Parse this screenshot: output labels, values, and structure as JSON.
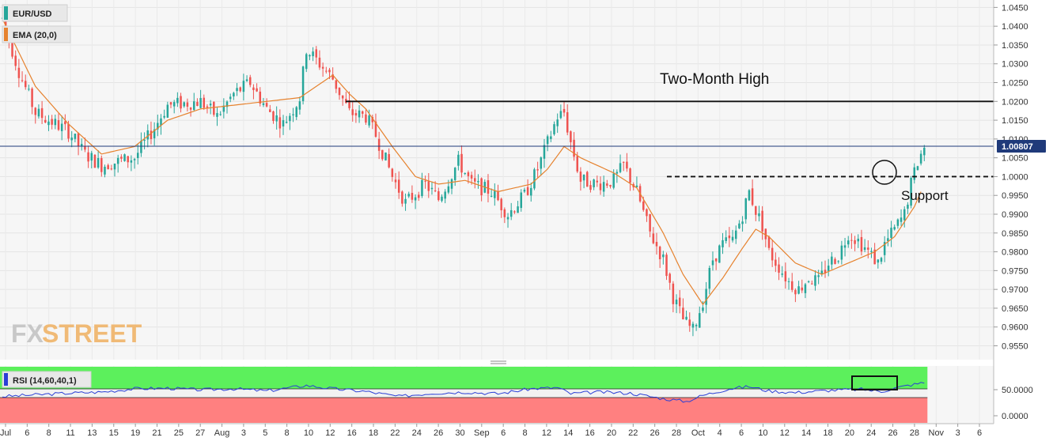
{
  "legend": {
    "symbol": "EUR/USD",
    "ema_label": "EMA (20,0)",
    "rsi_label": "RSI (14,60,40,1)"
  },
  "annotations": {
    "high_label": "Two-Month High",
    "support_label": "Support"
  },
  "watermark": {
    "fx": "FX",
    "street": "STREET"
  },
  "price_badge": "1.00807",
  "colors": {
    "up": "#26a69a",
    "down": "#ef5350",
    "ema": "#e6822e",
    "rsi_line": "#2a3fd6",
    "rsi_overbought": "#5cf05c",
    "rsi_oversold": "#ff8080",
    "price_line": "#1f3a7a"
  },
  "chart_data": {
    "type": "candlestick",
    "instrument": "EUR/USD",
    "price_axis": {
      "range": [
        0.953,
        1.0455
      ],
      "ticks": [
        "1.0450",
        "1.0400",
        "1.0350",
        "1.0300",
        "1.0250",
        "1.0200",
        "1.0150",
        "1.0100",
        "1.0050",
        "1.0000",
        "0.9950",
        "0.9900",
        "0.9850",
        "0.9800",
        "0.9750",
        "0.9700",
        "0.9650",
        "0.9600",
        "0.9550"
      ]
    },
    "time_axis": {
      "labels": [
        "Jul",
        "6",
        "8",
        "11",
        "13",
        "15",
        "19",
        "21",
        "25",
        "27",
        "Aug",
        "3",
        "5",
        "8",
        "10",
        "12",
        "16",
        "18",
        "22",
        "24",
        "26",
        "30",
        "Sep",
        "6",
        "8",
        "12",
        "14",
        "16",
        "20",
        "22",
        "26",
        "28",
        "Oct",
        "4",
        "6",
        "10",
        "12",
        "14",
        "18",
        "20",
        "24",
        "26",
        "28",
        "Nov",
        "3",
        "6"
      ]
    },
    "price_path": [
      [
        0,
        1.042
      ],
      [
        5,
        1.028
      ],
      [
        10,
        1.017
      ],
      [
        20,
        1.012
      ],
      [
        25,
        1.006
      ],
      [
        30,
        1.003
      ],
      [
        40,
        1.005
      ],
      [
        46,
        1.013
      ],
      [
        50,
        1.019
      ],
      [
        60,
        1.02
      ],
      [
        65,
        1.016
      ],
      [
        70,
        1.022
      ],
      [
        75,
        1.025
      ],
      [
        80,
        1.018
      ],
      [
        85,
        1.014
      ],
      [
        88,
        1.018
      ],
      [
        90,
        1.021
      ],
      [
        92,
        1.034
      ],
      [
        96,
        1.03
      ],
      [
        100,
        1.026
      ],
      [
        105,
        1.017
      ],
      [
        110,
        1.016
      ],
      [
        113,
        1.011
      ],
      [
        118,
        1.0
      ],
      [
        122,
        0.993
      ],
      [
        128,
        0.998
      ],
      [
        132,
        0.994
      ],
      [
        138,
        1.004
      ],
      [
        142,
        0.998
      ],
      [
        148,
        0.996
      ],
      [
        153,
        0.99
      ],
      [
        158,
        0.995
      ],
      [
        162,
        1.002
      ],
      [
        165,
        1.009
      ],
      [
        168,
        1.016
      ],
      [
        170,
        1.017
      ],
      [
        172,
        1.009
      ],
      [
        175,
        0.999
      ],
      [
        180,
        0.998
      ],
      [
        185,
        0.999
      ],
      [
        188,
        1.003
      ],
      [
        192,
        0.996
      ],
      [
        196,
        0.985
      ],
      [
        200,
        0.978
      ],
      [
        203,
        0.968
      ],
      [
        206,
        0.962
      ],
      [
        209,
        0.959
      ],
      [
        212,
        0.967
      ],
      [
        215,
        0.978
      ],
      [
        218,
        0.982
      ],
      [
        221,
        0.983
      ],
      [
        224,
        0.99
      ],
      [
        226,
        0.996
      ],
      [
        228,
        0.991
      ],
      [
        230,
        0.987
      ],
      [
        232,
        0.98
      ],
      [
        235,
        0.976
      ],
      [
        238,
        0.972
      ],
      [
        241,
        0.97
      ],
      [
        244,
        0.973
      ],
      [
        247,
        0.972
      ],
      [
        250,
        0.977
      ],
      [
        253,
        0.979
      ],
      [
        256,
        0.985
      ],
      [
        259,
        0.983
      ],
      [
        262,
        0.98
      ],
      [
        265,
        0.977
      ],
      [
        267,
        0.982
      ],
      [
        270,
        0.986
      ],
      [
        273,
        0.99
      ],
      [
        275,
        0.998
      ],
      [
        277,
        1.004
      ],
      [
        279,
        1.008
      ]
    ],
    "ema": {
      "name": "EMA (20,0)",
      "path": [
        [
          0,
          1.042
        ],
        [
          10,
          1.024
        ],
        [
          20,
          1.014
        ],
        [
          30,
          1.006
        ],
        [
          40,
          1.008
        ],
        [
          50,
          1.015
        ],
        [
          60,
          1.018
        ],
        [
          70,
          1.019
        ],
        [
          80,
          1.02
        ],
        [
          90,
          1.021
        ],
        [
          100,
          1.027
        ],
        [
          105,
          1.022
        ],
        [
          110,
          1.018
        ],
        [
          118,
          1.008
        ],
        [
          125,
          1.0
        ],
        [
          132,
          0.998
        ],
        [
          140,
          0.999
        ],
        [
          150,
          0.996
        ],
        [
          160,
          0.998
        ],
        [
          165,
          1.002
        ],
        [
          170,
          1.008
        ],
        [
          175,
          1.005
        ],
        [
          185,
          1.001
        ],
        [
          192,
          0.997
        ],
        [
          200,
          0.985
        ],
        [
          206,
          0.974
        ],
        [
          212,
          0.966
        ],
        [
          218,
          0.973
        ],
        [
          224,
          0.981
        ],
        [
          228,
          0.986
        ],
        [
          232,
          0.984
        ],
        [
          240,
          0.977
        ],
        [
          248,
          0.974
        ],
        [
          256,
          0.977
        ],
        [
          264,
          0.98
        ],
        [
          270,
          0.984
        ],
        [
          276,
          0.992
        ],
        [
          278,
          0.996
        ]
      ]
    },
    "levels": [
      {
        "label": "Two-Month High",
        "value": 1.02,
        "style": "solid"
      },
      {
        "label": "Support",
        "value": 1.0,
        "style": "dashed"
      }
    ],
    "last_price": 1.00807,
    "rsi": {
      "name": "RSI (14,60,40,1)",
      "axis_ticks": [
        "50.0000",
        "0.0000"
      ],
      "overbought": 60,
      "oversold": 40,
      "path": [
        [
          0,
          42
        ],
        [
          10,
          45
        ],
        [
          20,
          48
        ],
        [
          30,
          50
        ],
        [
          40,
          56
        ],
        [
          50,
          57
        ],
        [
          60,
          54
        ],
        [
          70,
          56
        ],
        [
          80,
          52
        ],
        [
          92,
          62
        ],
        [
          100,
          56
        ],
        [
          110,
          51
        ],
        [
          120,
          42
        ],
        [
          130,
          48
        ],
        [
          140,
          50
        ],
        [
          150,
          47
        ],
        [
          160,
          56
        ],
        [
          168,
          58
        ],
        [
          172,
          47
        ],
        [
          180,
          50
        ],
        [
          190,
          48
        ],
        [
          200,
          38
        ],
        [
          207,
          33
        ],
        [
          212,
          44
        ],
        [
          220,
          56
        ],
        [
          226,
          60
        ],
        [
          232,
          52
        ],
        [
          240,
          49
        ],
        [
          250,
          53
        ],
        [
          260,
          55
        ],
        [
          266,
          51
        ],
        [
          270,
          57
        ],
        [
          275,
          63
        ],
        [
          279,
          67
        ]
      ]
    }
  }
}
